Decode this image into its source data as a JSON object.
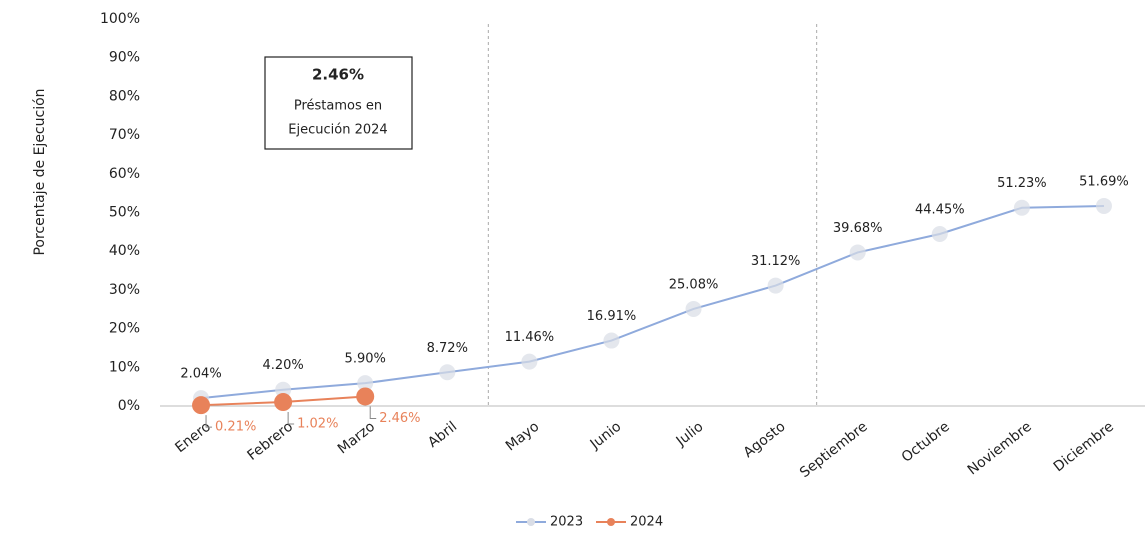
{
  "chart_data": {
    "type": "line",
    "y_label": "Porcentaje de Ejecución",
    "annotation": [
      "2.46%",
      "Préstamos en",
      "Ejecución 2024"
    ],
    "categories": [
      "Enero",
      "Febrero",
      "Marzo",
      "Abril",
      "Mayo",
      "Junio",
      "Julio",
      "Agosto",
      "Septiembre",
      "Octubre",
      "Noviembre",
      "Diciembre"
    ],
    "series": [
      {
        "name": "2023",
        "color": "#8faadc",
        "values": [
          2.04,
          4.2,
          5.9,
          8.72,
          11.46,
          16.91,
          25.08,
          31.12,
          39.68,
          44.45,
          51.23,
          51.69
        ],
        "value_labels": [
          "2.04%",
          "4.20%",
          "5.90%",
          "8.72%",
          "11.46%",
          "16.91%",
          "25.08%",
          "31.12%",
          "39.68%",
          "44.45%",
          "51.23%",
          "51.69%"
        ]
      },
      {
        "name": "2024",
        "color": "#e8825a",
        "values": [
          0.21,
          1.02,
          2.46,
          null,
          null,
          null,
          null,
          null,
          null,
          null,
          null,
          null
        ],
        "value_labels": [
          "0.21%",
          "1.02%",
          "2.46%",
          null,
          null,
          null,
          null,
          null,
          null,
          null,
          null,
          null
        ]
      }
    ],
    "ylim": [
      0,
      100
    ],
    "yticks": [
      {
        "value": 0,
        "label": "0%"
      },
      {
        "value": 10,
        "label": "10%"
      },
      {
        "value": 20,
        "label": "20%"
      },
      {
        "value": 30,
        "label": "30%"
      },
      {
        "value": 40,
        "label": "40%"
      },
      {
        "value": 50,
        "label": "50%"
      },
      {
        "value": 60,
        "label": "60%"
      },
      {
        "value": 70,
        "label": "70%"
      },
      {
        "value": 80,
        "label": "80%"
      },
      {
        "value": 90,
        "label": "90%"
      },
      {
        "value": 100,
        "label": "100%"
      }
    ],
    "legend": "bottom"
  }
}
